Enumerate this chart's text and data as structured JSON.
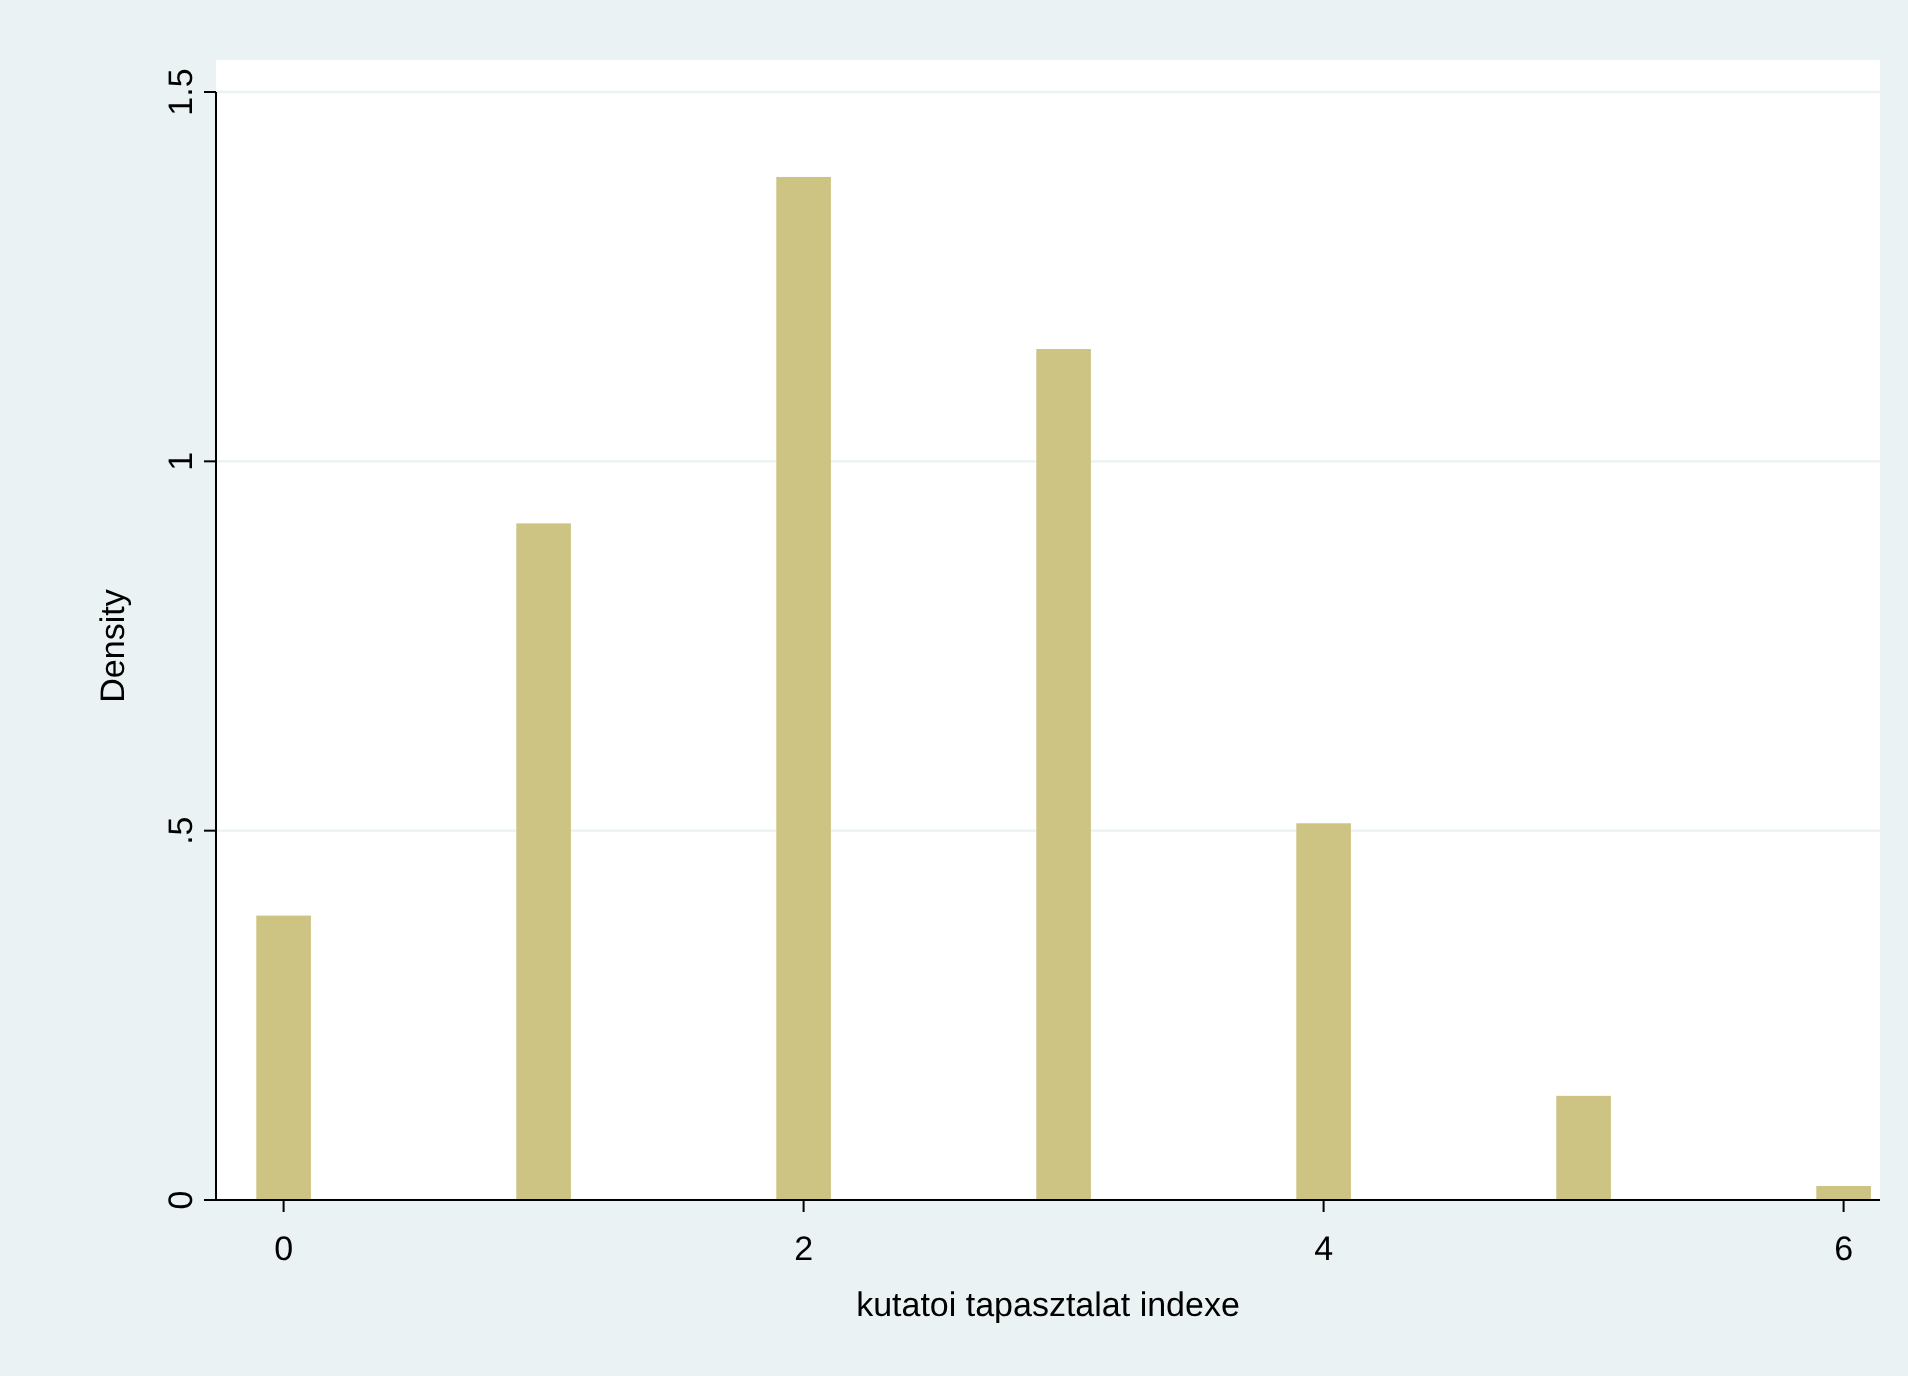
{
  "chart_data": {
    "type": "bar",
    "xlabel": "kutatoi tapasztalat indexe",
    "ylabel": "Density",
    "x": [
      0,
      1,
      2,
      3,
      4,
      5,
      6
    ],
    "values": [
      0.385,
      0.916,
      1.385,
      1.152,
      0.51,
      0.141,
      0.019
    ],
    "color": "#cdc383",
    "xlim": [
      -0.26,
      6.14
    ],
    "xticks": [
      0,
      2,
      4,
      6
    ],
    "ylim": [
      0,
      1.5
    ],
    "yticks": [
      0,
      {
        "value": 0.5,
        "label": ".5"
      },
      1,
      1.5
    ],
    "grid": "y"
  }
}
